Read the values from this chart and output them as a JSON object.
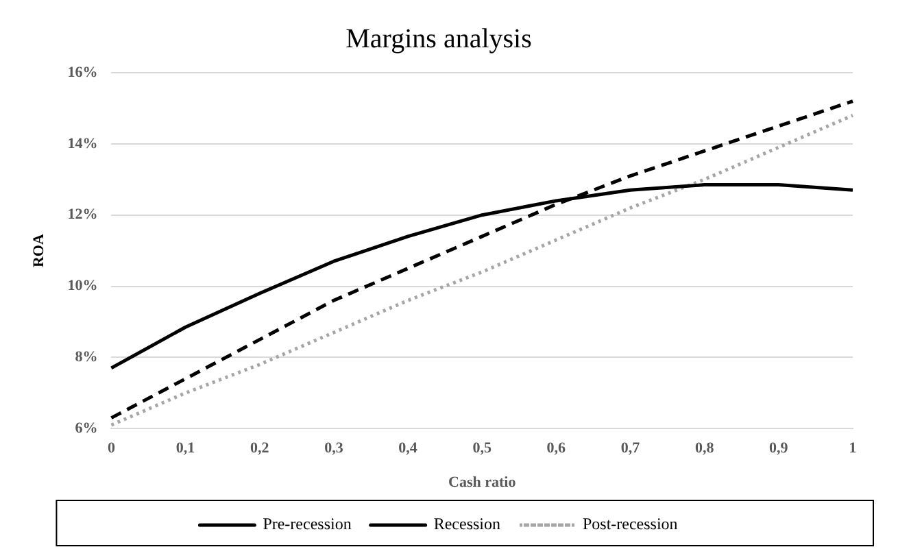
{
  "chart_data": {
    "type": "line",
    "title": "Margins analysis",
    "xlabel": "Cash ratio",
    "ylabel": "ROA",
    "categories": [
      "0",
      "0,1",
      "0,2",
      "0,3",
      "0,4",
      "0,5",
      "0,6",
      "0,7",
      "0,8",
      "0,9",
      "1"
    ],
    "series": [
      {
        "name": "Pre-recession",
        "color": "#000000",
        "line_style": "solid",
        "values": [
          7.7,
          8.85,
          9.8,
          10.7,
          11.4,
          12.0,
          12.4,
          12.7,
          12.85,
          12.85,
          12.7
        ]
      },
      {
        "name": "Recession",
        "color": "#000000",
        "line_style": "dashed",
        "values": [
          6.3,
          7.4,
          8.5,
          9.6,
          10.5,
          11.4,
          12.3,
          13.1,
          13.8,
          14.5,
          15.2
        ]
      },
      {
        "name": "Post-recession",
        "color": "#a6a6a6",
        "line_style": "dotted",
        "values": [
          6.1,
          7.0,
          7.8,
          8.7,
          9.6,
          10.4,
          11.3,
          12.2,
          13.0,
          13.9,
          14.8
        ]
      }
    ],
    "ylim": [
      6,
      16
    ],
    "yticks": [
      {
        "value": 6,
        "label": "6%"
      },
      {
        "value": 8,
        "label": "8%"
      },
      {
        "value": 10,
        "label": "10%"
      },
      {
        "value": 12,
        "label": "12%"
      },
      {
        "value": 14,
        "label": "14%"
      },
      {
        "value": 16,
        "label": "16%"
      }
    ],
    "grid": "y",
    "legend": "bottom",
    "marker": "none"
  }
}
